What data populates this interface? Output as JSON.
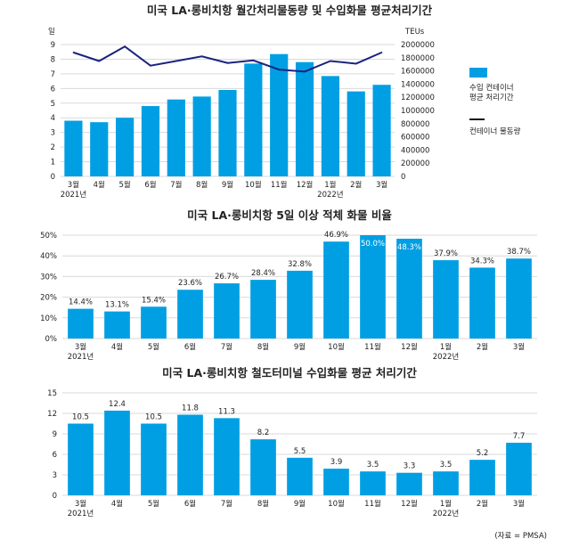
{
  "colors": {
    "bar": "#009fe3",
    "line": "#1a237e",
    "grid": "#d9d9d9"
  },
  "source": "(자료 = PMSA)",
  "chart_data": [
    {
      "type": "bar+line",
      "title": "미국 LA·롱비치항 월간처리물동량 및 수입화물 평균처리기간",
      "categories": [
        "3월",
        "4월",
        "5월",
        "6월",
        "7월",
        "8월",
        "9월",
        "10월",
        "11월",
        "12월",
        "1월",
        "2월",
        "3월"
      ],
      "year_labels": {
        "0": "2021년",
        "10": "2022년"
      },
      "left_axis": {
        "label": "일",
        "ylim": [
          0,
          9
        ],
        "ticks": [
          "0",
          "1",
          "2",
          "3",
          "4",
          "5",
          "6",
          "7",
          "8",
          "9"
        ]
      },
      "right_axis": {
        "label": "TEUs",
        "ylim": [
          0,
          2000000
        ],
        "ticks": [
          "0",
          "200000",
          "400000",
          "600000",
          "800000",
          "1000000",
          "1200000",
          "1400000",
          "1600000",
          "1800000",
          "2000000"
        ]
      },
      "series": [
        {
          "name": "수입 컨테이너 평균 처리기간",
          "type": "bar",
          "axis": "left",
          "values": [
            3.8,
            3.7,
            4.0,
            4.8,
            5.25,
            5.45,
            5.9,
            7.7,
            8.35,
            7.8,
            6.85,
            5.8,
            6.25
          ]
        },
        {
          "name": "컨테이너 물동량",
          "type": "line",
          "axis": "right",
          "values": [
            1880000,
            1750000,
            1970000,
            1680000,
            1750000,
            1820000,
            1720000,
            1760000,
            1620000,
            1590000,
            1750000,
            1710000,
            1880000
          ]
        }
      ],
      "legend": [
        "수입 컨테이너",
        "평균 처리기간",
        "컨테이너 물동량"
      ],
      "legend_position": "right"
    },
    {
      "type": "bar",
      "title": "미국 LA·롱비치항 5일 이상 적체 화물 비율",
      "categories": [
        "3월",
        "4월",
        "5월",
        "6월",
        "7월",
        "8월",
        "9월",
        "10월",
        "11월",
        "12월",
        "1월",
        "2월",
        "3월"
      ],
      "year_labels": {
        "0": "2021년",
        "10": "2022년"
      },
      "ylim": [
        0,
        50
      ],
      "ticks": [
        "0%",
        "10%",
        "20%",
        "30%",
        "40%",
        "50%"
      ],
      "values": [
        14.4,
        13.1,
        15.4,
        23.6,
        26.7,
        28.4,
        32.8,
        46.9,
        50.0,
        48.3,
        37.9,
        34.3,
        38.7
      ],
      "labels": [
        "14.4%",
        "13.1%",
        "15.4%",
        "23.6%",
        "26.7%",
        "28.4%",
        "32.8%",
        "46.9%",
        "50.0%",
        "48.3%",
        "37.9%",
        "34.3%",
        "38.7%"
      ],
      "inside_labels": [
        8,
        9
      ]
    },
    {
      "type": "bar",
      "title": "미국 LA·롱비치항 철도터미널 수입화물 평균 처리기간",
      "categories": [
        "3월",
        "4월",
        "5월",
        "6월",
        "7월",
        "8월",
        "9월",
        "10월",
        "11월",
        "12월",
        "1월",
        "2월",
        "3월"
      ],
      "year_labels": {
        "0": "2021년",
        "10": "2022년"
      },
      "ylim": [
        0,
        15
      ],
      "ticks": [
        "0",
        "3",
        "6",
        "9",
        "12",
        "15"
      ],
      "values": [
        10.5,
        12.4,
        10.5,
        11.8,
        11.3,
        8.2,
        5.5,
        3.9,
        3.5,
        3.3,
        3.5,
        5.2,
        7.7
      ],
      "labels": [
        "10.5",
        "12.4",
        "10.5",
        "11.8",
        "11.3",
        "8.2",
        "5.5",
        "3.9",
        "3.5",
        "3.3",
        "3.5",
        "5.2",
        "7.7"
      ],
      "inside_labels": []
    }
  ]
}
